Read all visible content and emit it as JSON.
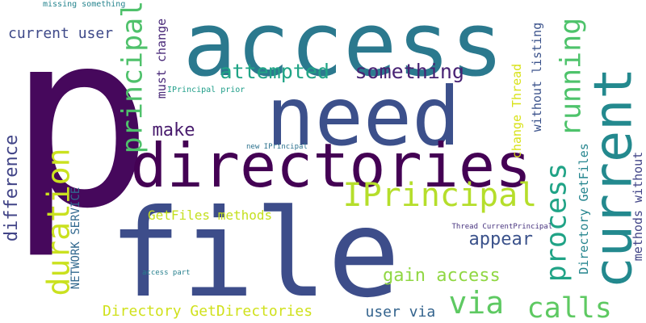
{
  "words": [
    {
      "text": "p",
      "color": "#46085c",
      "vertical": false
    },
    {
      "text": "access",
      "color": "#2b798e",
      "vertical": false
    },
    {
      "text": "need",
      "color": "#3c508b",
      "vertical": false
    },
    {
      "text": "file",
      "color": "#3d4d8a",
      "vertical": false
    },
    {
      "text": "directories",
      "color": "#440154",
      "vertical": false
    },
    {
      "text": "current",
      "color": "#23898e",
      "vertical": true
    },
    {
      "text": "principal",
      "color": "#4fc16b",
      "vertical": true
    },
    {
      "text": "IPrincipal",
      "color": "#b5de2b",
      "vertical": false
    },
    {
      "text": "running",
      "color": "#4ec36b",
      "vertical": true
    },
    {
      "text": "process",
      "color": "#20a386",
      "vertical": true
    },
    {
      "text": "duration",
      "color": "#cae11f",
      "vertical": true
    },
    {
      "text": "calls",
      "color": "#5ec962",
      "vertical": false
    },
    {
      "text": "via",
      "color": "#5ec962",
      "vertical": false
    },
    {
      "text": "attempted",
      "color": "#20a486",
      "vertical": false
    },
    {
      "text": "something",
      "color": "#482374",
      "vertical": false
    },
    {
      "text": "difference",
      "color": "#414487",
      "vertical": true
    },
    {
      "text": "make",
      "color": "#481b6d",
      "vertical": false
    },
    {
      "text": "appear",
      "color": "#3b528b",
      "vertical": false
    },
    {
      "text": "gain access",
      "color": "#90d743",
      "vertical": false
    },
    {
      "text": "current user",
      "color": "#3e4989",
      "vertical": false
    },
    {
      "text": "Directory GetDirectories",
      "color": "#d0e11c",
      "vertical": false
    },
    {
      "text": "GetFiles methods",
      "color": "#c5e021",
      "vertical": false
    },
    {
      "text": "user via",
      "color": "#33638d",
      "vertical": false
    },
    {
      "text": "must change",
      "color": "#482878",
      "vertical": true
    },
    {
      "text": "change Thread",
      "color": "#d8e219",
      "vertical": true
    },
    {
      "text": "without listing",
      "color": "#3b528b",
      "vertical": true
    },
    {
      "text": "Directory GetFiles",
      "color": "#25858e",
      "vertical": true
    },
    {
      "text": "methods without",
      "color": "#414487",
      "vertical": true
    },
    {
      "text": "NETWORK SERVICE",
      "color": "#31688e",
      "vertical": true
    },
    {
      "text": "IPrincipal prior",
      "color": "#1f9e89",
      "vertical": false
    },
    {
      "text": "missing something",
      "color": "#25848e",
      "vertical": false
    },
    {
      "text": "new IPrincipal",
      "color": "#2c728e",
      "vertical": false
    },
    {
      "text": "Thread CurrentPrincipal",
      "color": "#46327e",
      "vertical": false
    },
    {
      "text": "access part",
      "color": "#27808e",
      "vertical": false
    }
  ]
}
